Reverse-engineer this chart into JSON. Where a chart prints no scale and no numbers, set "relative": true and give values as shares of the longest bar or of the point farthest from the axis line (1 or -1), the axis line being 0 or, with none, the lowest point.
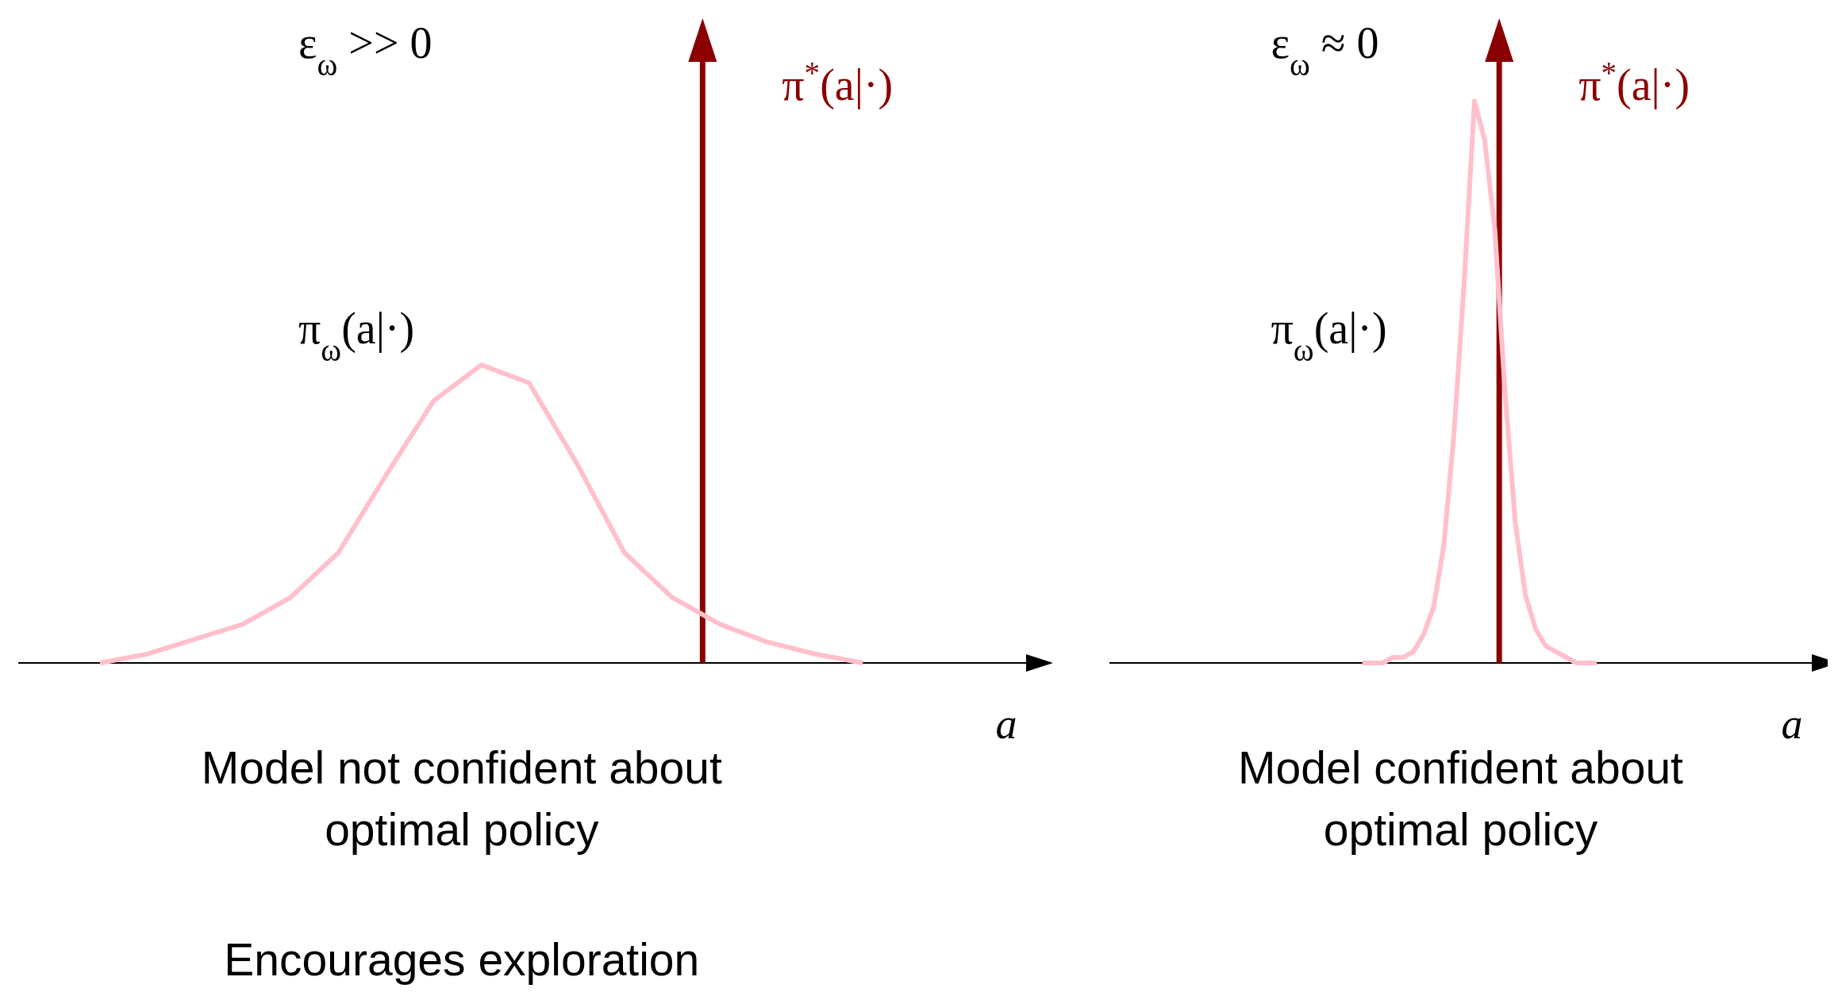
{
  "chart_data": [
    {
      "type": "line",
      "title": "ε$_{ω}$ >> 0",
      "xlabel": "a",
      "relative": true,
      "categories": [
        null,
        null,
        null,
        null,
        null,
        null,
        null,
        null,
        null,
        null,
        null,
        null,
        null,
        null,
        null,
        null,
        null
      ],
      "series": [
        {
          "name": "π$_{ω}$(a|·)",
          "color": "#ffc0cb",
          "values": [
            0,
            0.03,
            0.08,
            0.13,
            0.22,
            0.37,
            0.63,
            0.88,
            1,
            0.94,
            0.67,
            0.37,
            0.22,
            0.13,
            0.07,
            0.03,
            0
          ]
        }
      ],
      "annotations": [
        "π$^{*}$(a|·)",
        "Model not confident about optimal policy",
        "Encourages exploration"
      ]
    },
    {
      "type": "line",
      "title": "ε$_{ω}$ ≈ 0",
      "xlabel": "a",
      "relative": true,
      "categories": [
        null,
        null,
        null,
        null,
        null,
        null,
        null,
        null,
        null,
        null,
        null,
        null,
        null,
        null,
        null,
        null,
        null,
        null,
        null,
        null,
        null,
        null,
        null,
        null
      ],
      "series": [
        {
          "name": "π$_{ω}$(a|·)",
          "color": "#ffc0cb",
          "values": [
            0,
            0,
            0,
            0.01,
            0.01,
            0.02,
            0.05,
            0.1,
            0.21,
            0.41,
            0.68,
            1,
            0.93,
            0.77,
            0.48,
            0.25,
            0.12,
            0.06,
            0.03,
            0.02,
            0.01,
            0,
            0,
            0
          ]
        }
      ],
      "annotations": [
        "π$^{*}$(a|·)",
        "Model confident about optimal policy"
      ]
    }
  ]
}
